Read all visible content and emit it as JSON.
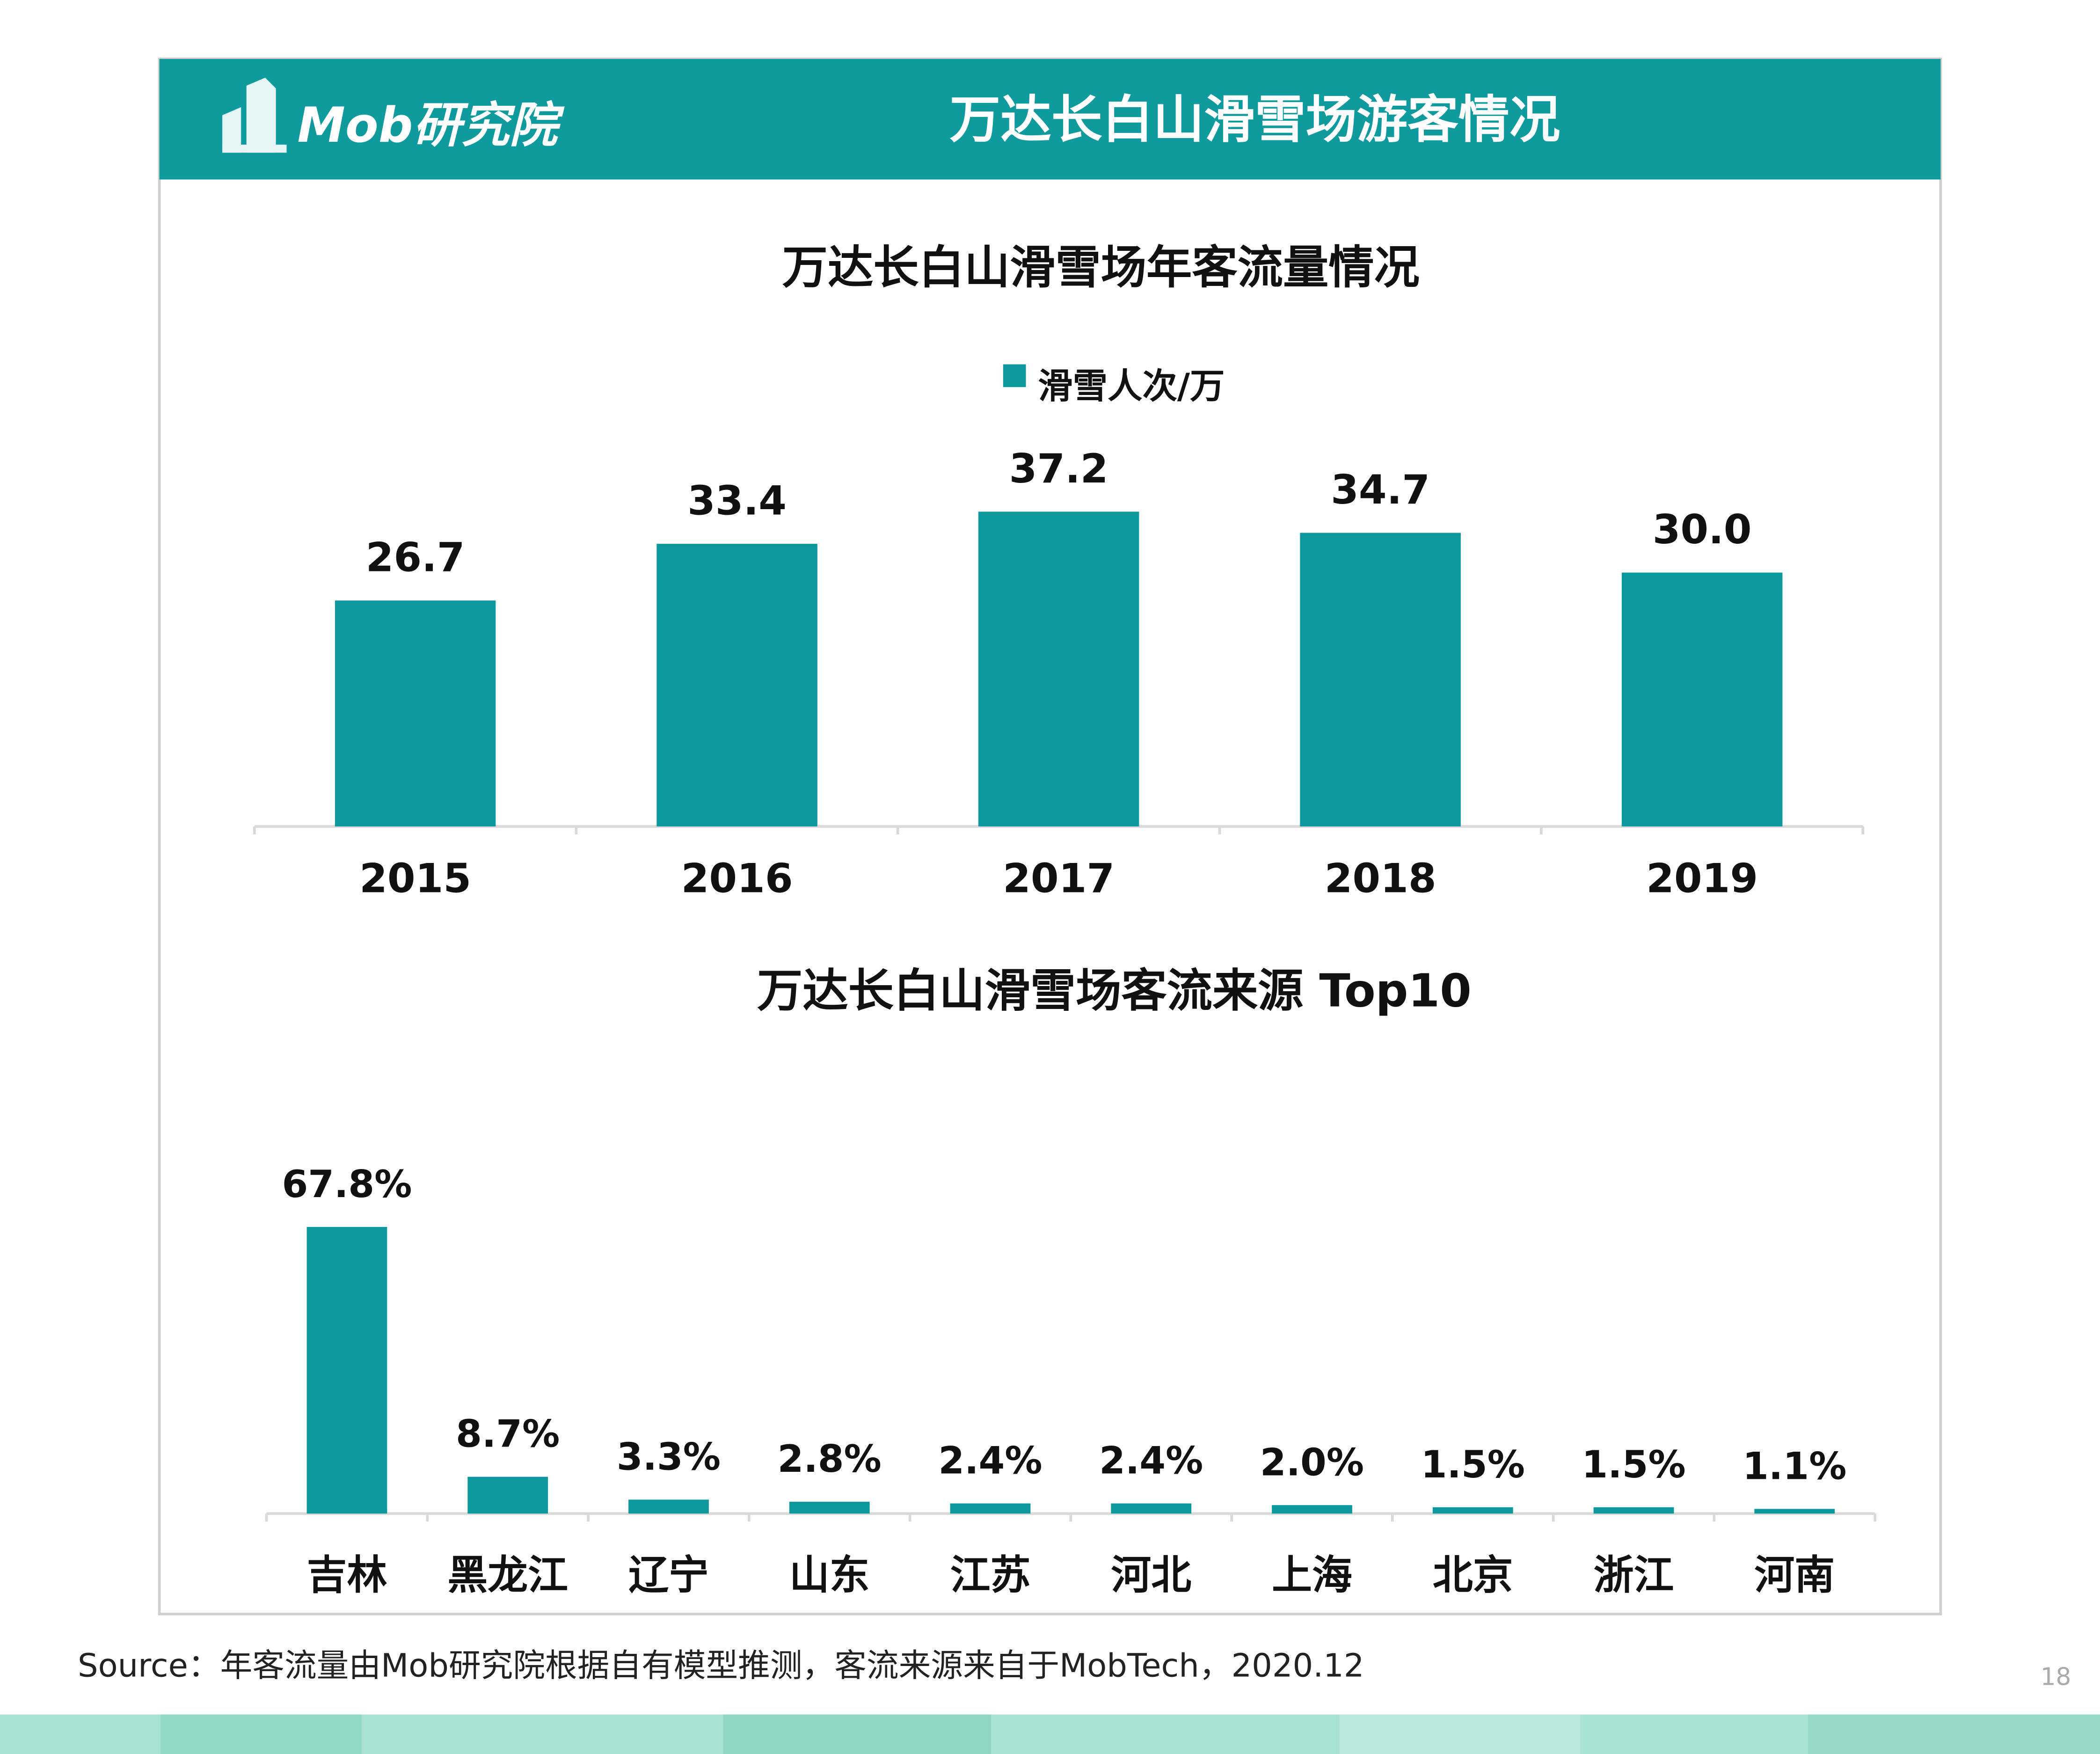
{
  "header": {
    "logo": "Mob研究院",
    "title": "万达长白山滑雪场游客情况"
  },
  "chart_data": [
    {
      "type": "bar",
      "title": "万达长白山滑雪场年客流量情况",
      "categories": [
        "2015",
        "2016",
        "2017",
        "2018",
        "2019"
      ],
      "series": [
        {
          "name": "滑雪人次/万",
          "color": "#0c989d",
          "values": [
            26.7,
            33.4,
            37.2,
            34.7,
            30
          ],
          "value_labels": [
            "26.7",
            "33.4",
            "37.2",
            "34.7",
            "30.0"
          ]
        }
      ]
    },
    {
      "type": "bar",
      "title": "万达长白山滑雪场客流来源 Top10",
      "categories": [
        "吉林",
        "黑龙江",
        "辽宁",
        "山东",
        "江苏",
        "河北",
        "上海",
        "北京",
        "浙江",
        "河南"
      ],
      "series": [
        {
          "color": "#0c989d",
          "values": [
            67.8,
            8.7,
            3.3,
            2.8,
            2.4,
            2.4,
            2.0,
            1.5,
            1.5,
            1.1
          ],
          "value_labels": [
            "67.8%",
            "8.7%",
            "3.3%",
            "2.8%",
            "2.4%",
            "2.4%",
            "2.0%",
            "1.5%",
            "1.5%",
            "1.1%"
          ]
        }
      ]
    }
  ],
  "source": "Source：年客流量由Mob研究院根据自有模型推测，客流来源来自于MobTech，2020.12",
  "page_number": "18"
}
